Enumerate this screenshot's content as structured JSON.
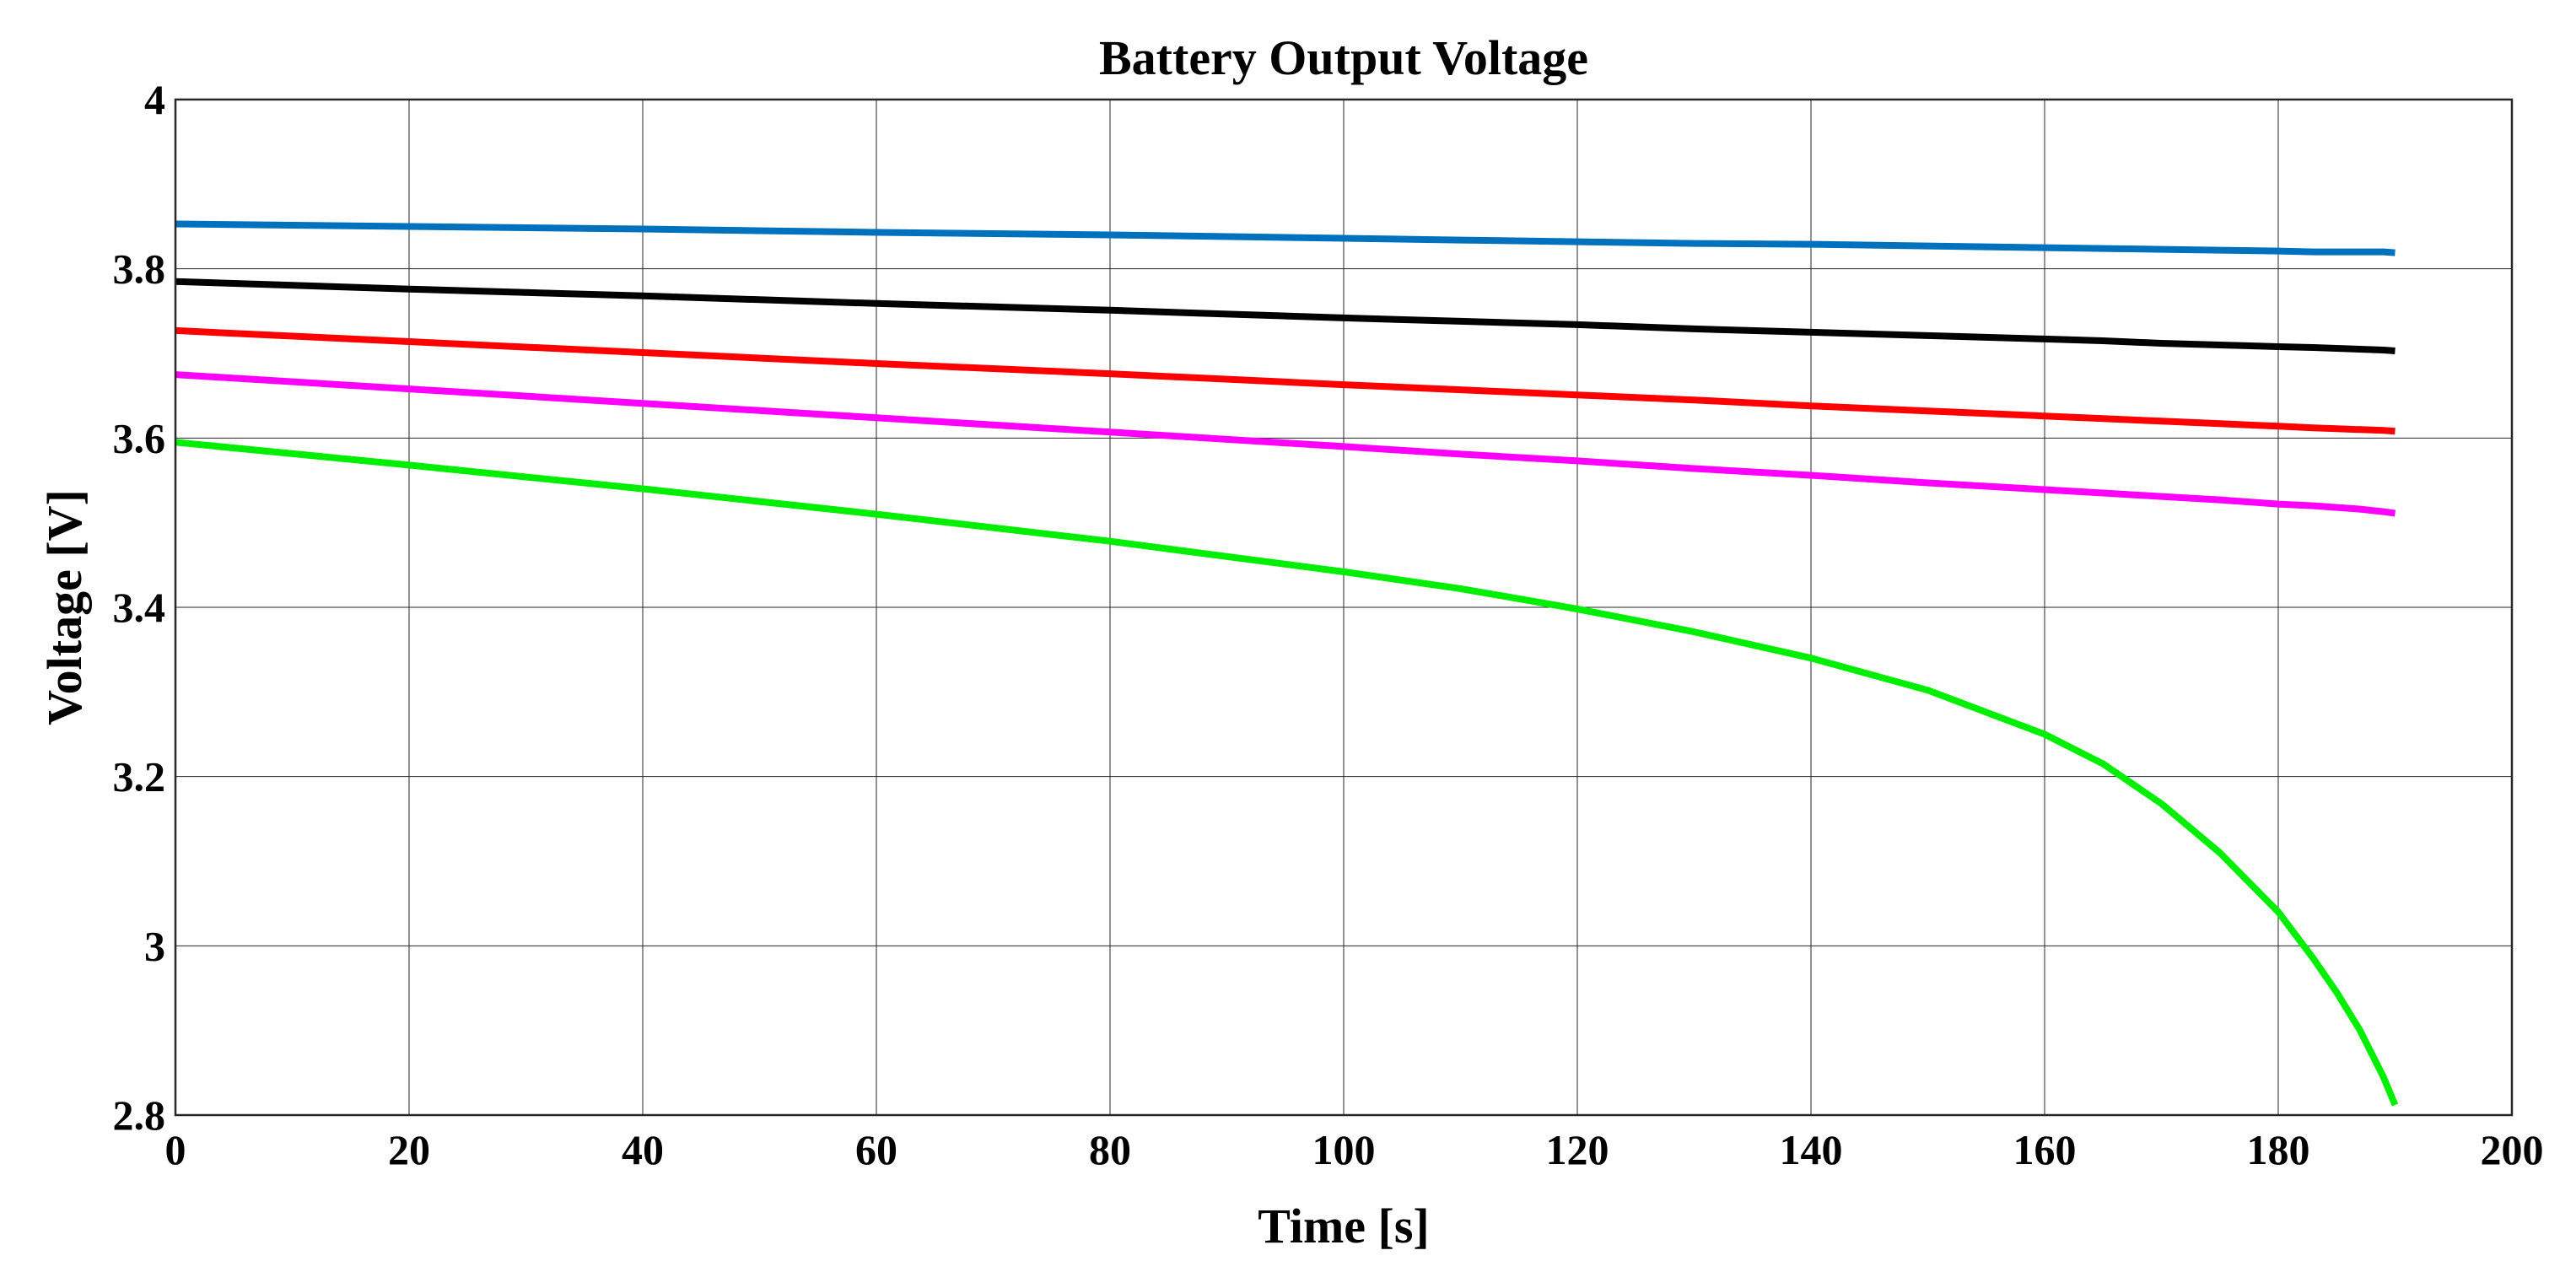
{
  "chart_data": {
    "type": "line",
    "title": "Battery Output Voltage",
    "xlabel": "Time [s]",
    "ylabel": "Voltage [V]",
    "xlim": [
      0,
      200
    ],
    "ylim": [
      2.8,
      4
    ],
    "xticks": [
      0,
      20,
      40,
      60,
      80,
      100,
      120,
      140,
      160,
      180,
      200
    ],
    "yticks": [
      2.8,
      3,
      3.2,
      3.4,
      3.6,
      3.8,
      4
    ],
    "xtick_labels": [
      "0",
      "20",
      "40",
      "60",
      "80",
      "100",
      "120",
      "140",
      "160",
      "180",
      "200"
    ],
    "ytick_labels": [
      "2.8",
      "3",
      "3.2",
      "3.4",
      "3.6",
      "3.8",
      "4"
    ],
    "grid": true,
    "legend": "none",
    "x": [
      0,
      20,
      40,
      60,
      80,
      100,
      110,
      120,
      130,
      140,
      150,
      160,
      165,
      170,
      175,
      180,
      183,
      185,
      187,
      189,
      190
    ],
    "series": [
      {
        "color": "#0072BD",
        "values": [
          3.853,
          3.85,
          3.847,
          3.843,
          3.84,
          3.836,
          3.834,
          3.832,
          3.83,
          3.829,
          3.827,
          3.825,
          3.824,
          3.823,
          3.822,
          3.821,
          3.82,
          3.82,
          3.82,
          3.82,
          3.819
        ]
      },
      {
        "color": "#000000",
        "values": [
          3.785,
          3.776,
          3.768,
          3.759,
          3.751,
          3.742,
          3.738,
          3.734,
          3.729,
          3.725,
          3.721,
          3.717,
          3.715,
          3.712,
          3.71,
          3.708,
          3.707,
          3.706,
          3.705,
          3.704,
          3.703
        ]
      },
      {
        "color": "#FF0000",
        "values": [
          3.727,
          3.714,
          3.701,
          3.688,
          3.676,
          3.663,
          3.657,
          3.651,
          3.645,
          3.638,
          3.632,
          3.626,
          3.623,
          3.62,
          3.617,
          3.614,
          3.612,
          3.611,
          3.61,
          3.609,
          3.608
        ]
      },
      {
        "color": "#FF00FF",
        "values": [
          3.675,
          3.658,
          3.641,
          3.624,
          3.607,
          3.59,
          3.581,
          3.573,
          3.564,
          3.556,
          3.547,
          3.539,
          3.535,
          3.531,
          3.527,
          3.522,
          3.52,
          3.518,
          3.516,
          3.513,
          3.511
        ]
      },
      {
        "color": "#00EE00",
        "values": [
          3.595,
          3.568,
          3.54,
          3.51,
          3.478,
          3.442,
          3.422,
          3.398,
          3.371,
          3.34,
          3.302,
          3.25,
          3.215,
          3.168,
          3.11,
          3.04,
          2.985,
          2.945,
          2.9,
          2.845,
          2.812
        ]
      }
    ]
  }
}
